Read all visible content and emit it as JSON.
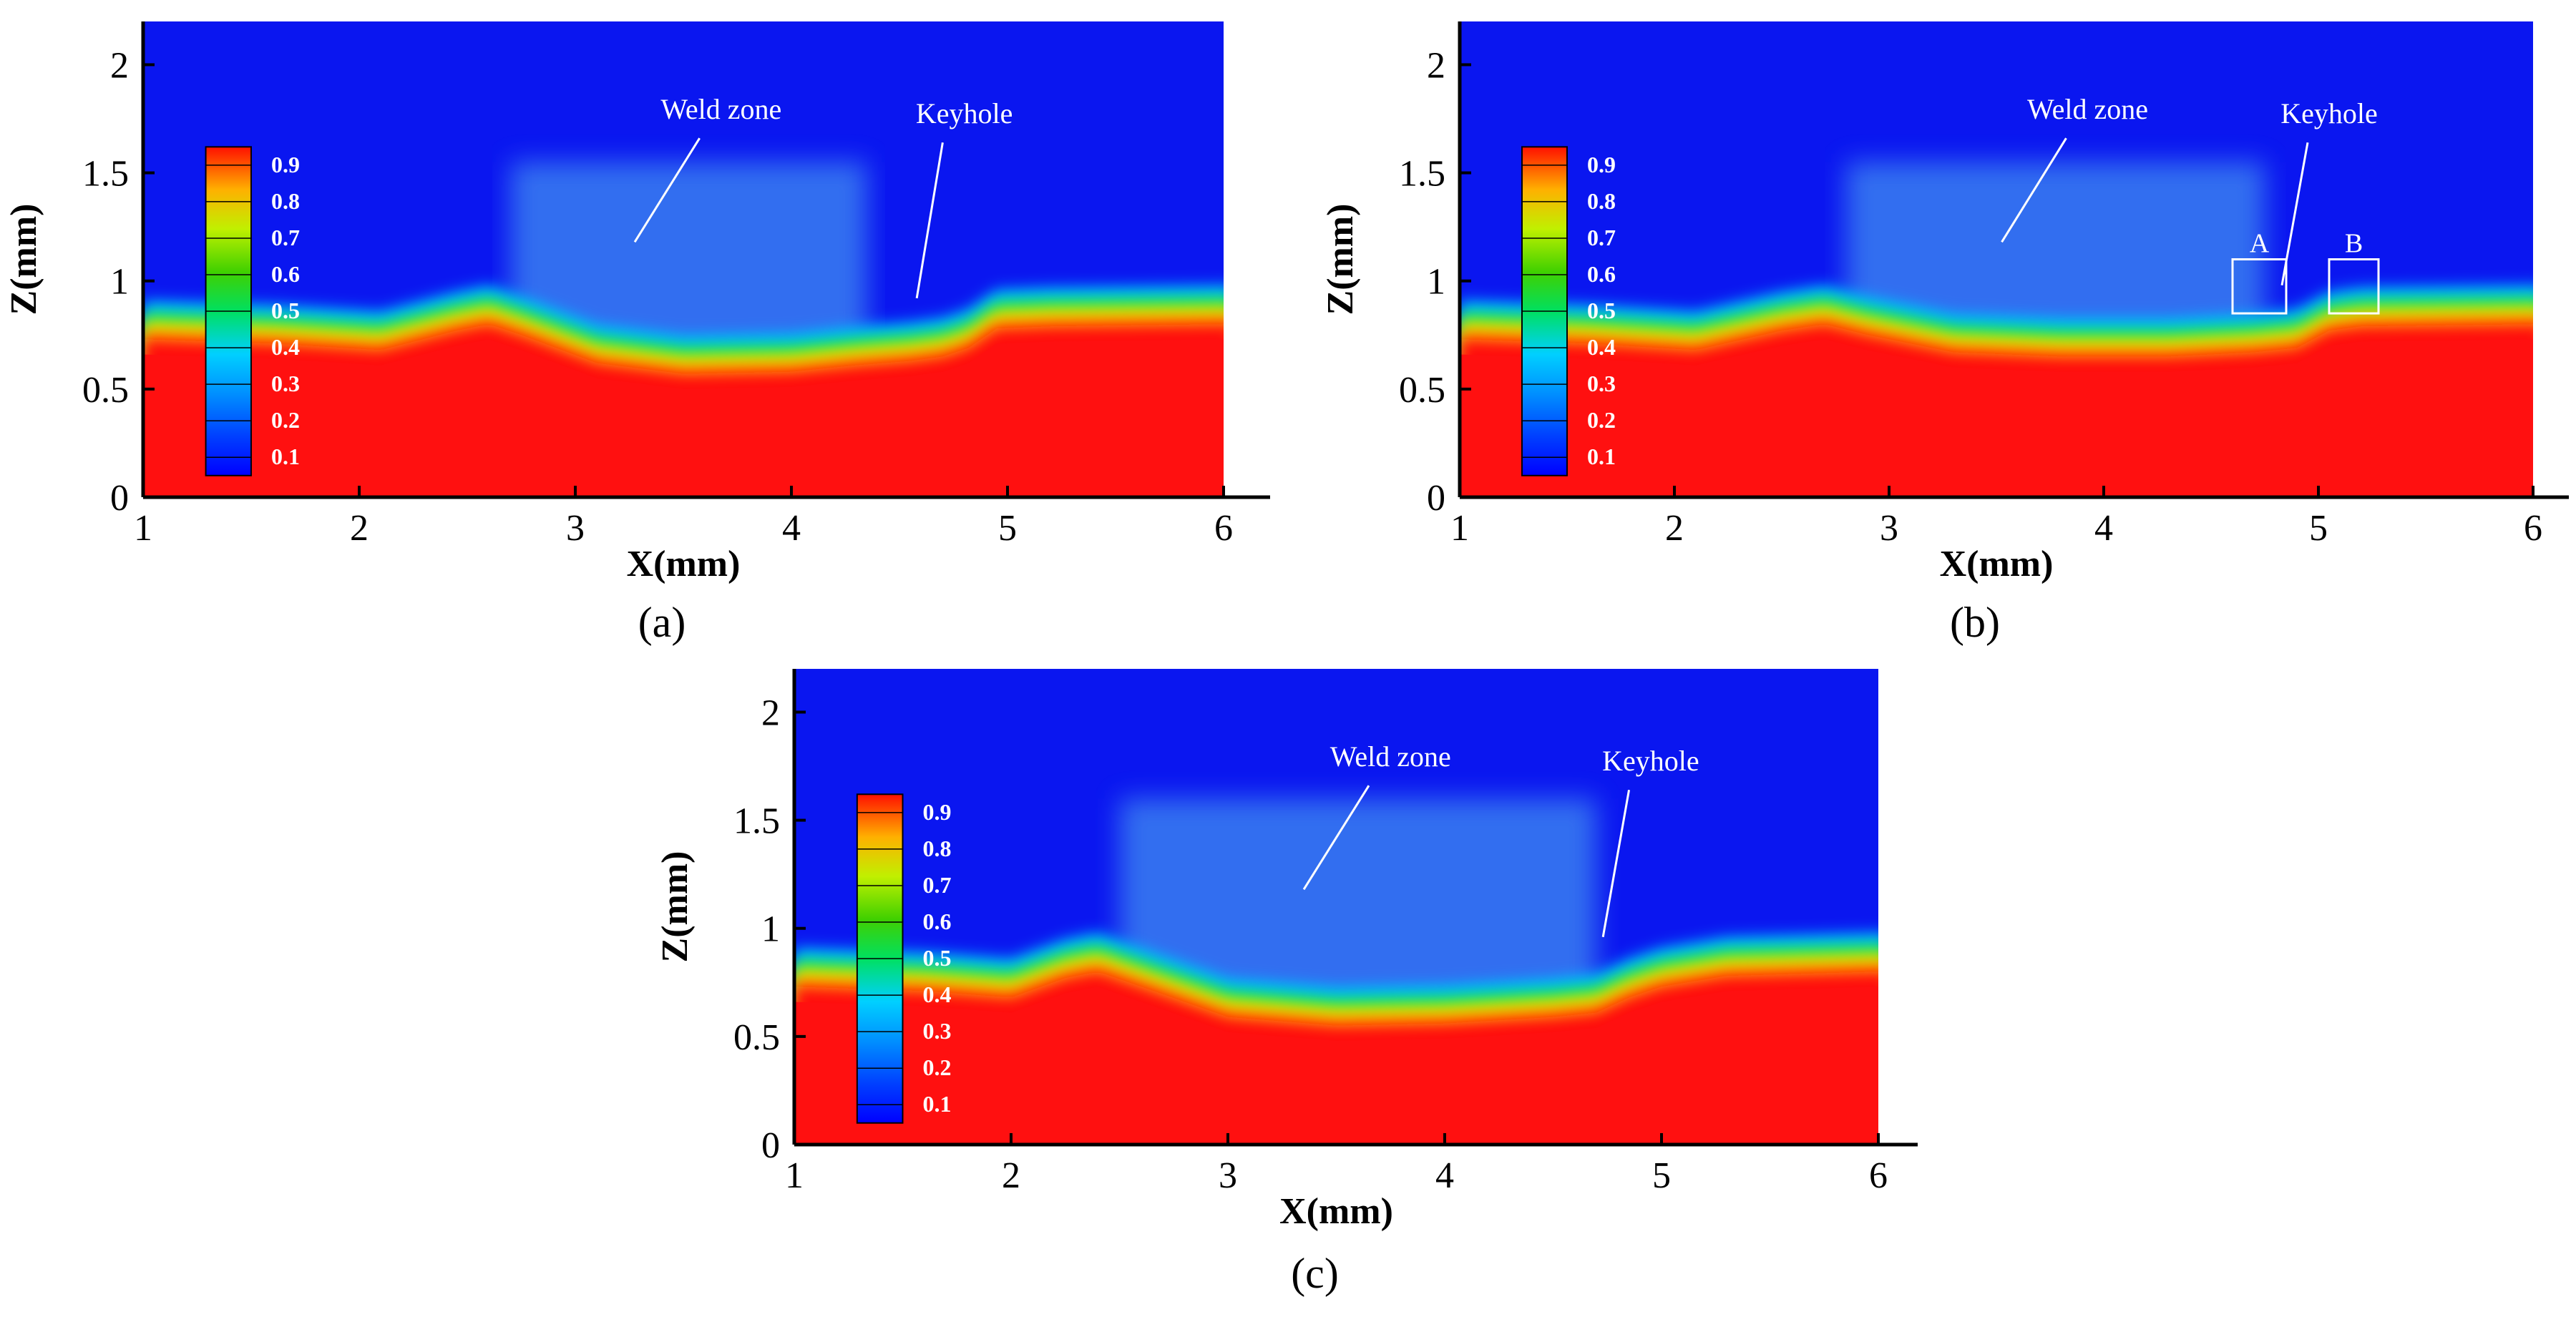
{
  "figure": {
    "panels": [
      {
        "label": "(a)",
        "annotations": {
          "weld_zone": "Weld zone",
          "keyhole": "Keyhole",
          "box_a": "",
          "box_b": ""
        }
      },
      {
        "label": "(b)",
        "annotations": {
          "weld_zone": "Weld zone",
          "keyhole": "Keyhole",
          "box_a": "A",
          "box_b": "B"
        }
      },
      {
        "label": "(c)",
        "annotations": {
          "weld_zone": "Weld zone",
          "keyhole": "Keyhole",
          "box_a": "",
          "box_b": ""
        }
      }
    ],
    "colors": {
      "background_blue": "#0a16f0",
      "metal_red": "#ff1010",
      "axis": "#000000",
      "annotation": "#ffffff"
    }
  },
  "chart_data": [
    {
      "type": "heatmap",
      "panel": "a",
      "title": "",
      "xlabel": "X(mm)",
      "ylabel": "Z(mm)",
      "xlim": [
        1,
        6.2
      ],
      "ylim": [
        0,
        2.2
      ],
      "x_ticks": [
        1,
        2,
        3,
        4,
        5,
        6
      ],
      "y_ticks": [
        0,
        0.5,
        1,
        1.5,
        2
      ],
      "x_tick_labels": [
        "1",
        "2",
        "3",
        "4",
        "5",
        "6"
      ],
      "y_tick_labels": [
        "0",
        "0.5",
        "1",
        "1.5",
        "2"
      ],
      "colorbar": {
        "labels": [
          "0.9",
          "0.8",
          "0.7",
          "0.6",
          "0.5",
          "0.4",
          "0.3",
          "0.2",
          "0.1"
        ],
        "min": 0,
        "max": 1,
        "placement": "left-inside"
      },
      "interface_profile": {
        "x": [
          1,
          1.6,
          2.1,
          2.45,
          2.6,
          2.75,
          3.1,
          3.5,
          4.0,
          4.3,
          4.55,
          4.7,
          4.82,
          4.95,
          5.2,
          6.0
        ],
        "z": [
          0.78,
          0.76,
          0.73,
          0.82,
          0.85,
          0.8,
          0.67,
          0.62,
          0.63,
          0.66,
          0.68,
          0.7,
          0.74,
          0.83,
          0.84,
          0.85
        ]
      },
      "weld_zone": {
        "x_range": [
          2.7,
          4.35
        ],
        "z_top": 1.55
      },
      "keyhole": {
        "x": 4.75,
        "z": 0.72
      }
    },
    {
      "type": "heatmap",
      "panel": "b",
      "title": "",
      "xlabel": "X(mm)",
      "ylabel": "Z(mm)",
      "xlim": [
        1,
        6.2
      ],
      "ylim": [
        0,
        2.2
      ],
      "x_ticks": [
        1,
        2,
        3,
        4,
        5,
        6
      ],
      "y_ticks": [
        0,
        0.5,
        1,
        1.5,
        2
      ],
      "x_tick_labels": [
        "1",
        "2",
        "3",
        "4",
        "5",
        "6"
      ],
      "y_tick_labels": [
        "0",
        "0.5",
        "1",
        "1.5",
        "2"
      ],
      "colorbar": {
        "labels": [
          "0.9",
          "0.8",
          "0.7",
          "0.6",
          "0.5",
          "0.4",
          "0.3",
          "0.2",
          "0.1"
        ],
        "min": 0,
        "max": 1,
        "placement": "left-inside"
      },
      "interface_profile": {
        "x": [
          1,
          1.6,
          2.1,
          2.5,
          2.7,
          2.9,
          3.3,
          3.8,
          4.3,
          4.7,
          4.9,
          5.05,
          5.2,
          6.0
        ],
        "z": [
          0.78,
          0.76,
          0.73,
          0.82,
          0.85,
          0.8,
          0.72,
          0.7,
          0.7,
          0.72,
          0.74,
          0.82,
          0.84,
          0.85
        ]
      },
      "weld_zone": {
        "x_range": [
          2.8,
          4.75
        ],
        "z_top": 1.55
      },
      "keyhole": {
        "x": 5.0,
        "z": 0.78
      },
      "boxes": [
        {
          "name": "A",
          "x_range": [
            4.6,
            4.85
          ],
          "z_range": [
            0.85,
            1.1
          ]
        },
        {
          "name": "B",
          "x_range": [
            5.05,
            5.28
          ],
          "z_range": [
            0.85,
            1.1
          ]
        }
      ]
    },
    {
      "type": "heatmap",
      "panel": "c",
      "title": "",
      "xlabel": "X(mm)",
      "ylabel": "Z(mm)",
      "xlim": [
        1,
        6.2
      ],
      "ylim": [
        0,
        2.2
      ],
      "x_ticks": [
        1,
        2,
        3,
        4,
        5,
        6
      ],
      "y_ticks": [
        0,
        0.5,
        1,
        1.5,
        2
      ],
      "x_tick_labels": [
        "1",
        "2",
        "3",
        "4",
        "5",
        "6"
      ],
      "y_tick_labels": [
        "0",
        "0.5",
        "1",
        "1.5",
        "2"
      ],
      "colorbar": {
        "labels": [
          "0.9",
          "0.8",
          "0.7",
          "0.6",
          "0.5",
          "0.4",
          "0.3",
          "0.2",
          "0.1"
        ],
        "min": 0,
        "max": 1,
        "placement": "left-inside"
      },
      "interface_profile": {
        "x": [
          1,
          1.6,
          2.0,
          2.25,
          2.4,
          2.6,
          3.0,
          3.5,
          4.0,
          4.5,
          4.7,
          4.85,
          5.0,
          5.3,
          6.0
        ],
        "z": [
          0.78,
          0.76,
          0.73,
          0.82,
          0.85,
          0.78,
          0.64,
          0.6,
          0.61,
          0.64,
          0.66,
          0.73,
          0.78,
          0.83,
          0.85
        ]
      },
      "weld_zone": {
        "x_range": [
          2.5,
          4.7
        ],
        "z_top": 1.6
      },
      "keyhole": {
        "x": 4.9,
        "z": 0.76
      }
    }
  ]
}
